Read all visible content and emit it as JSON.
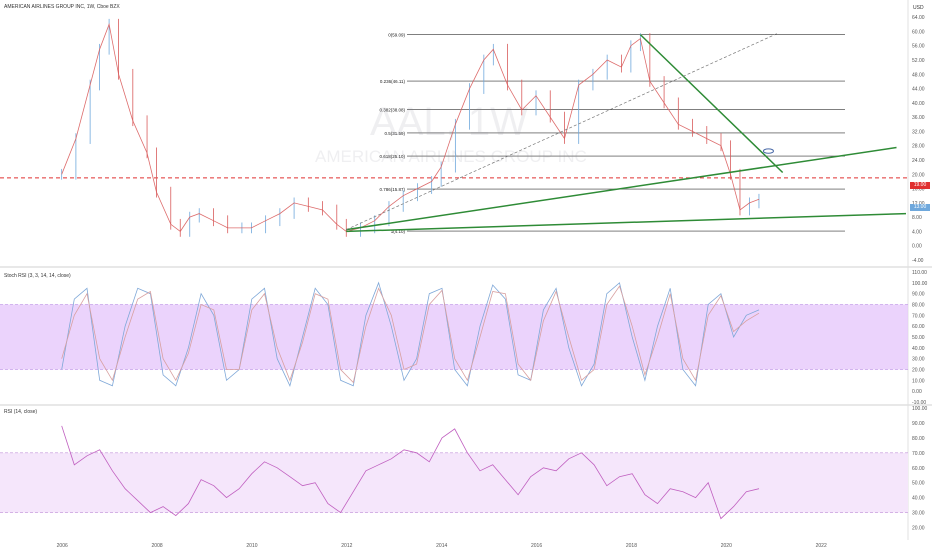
{
  "header": {
    "main_title": "AMERICAN AIRLINES GROUP INC, 1W, Cboe BZX",
    "stoch_title": "Stoch RSI (3, 3, 14, 14, close)",
    "rsi_title": "RSI (14, close)",
    "currency": "USD"
  },
  "watermark": {
    "ticker": "AAL, 1W",
    "name": "AMERICAN AIRLINES GROUP INC"
  },
  "current_labels": {
    "level": "19.00",
    "price": "13.00"
  },
  "colors": {
    "candle_up": "#6fa8dc",
    "candle_down": "#d95c5c",
    "trend": "#2e8b36",
    "fib": "#333333",
    "level_red": "#e03030",
    "band": "#e6c8fb",
    "stoch_k": "#7fa8d8",
    "stoch_d": "#d8a0a0",
    "rsi": "#c060c0"
  },
  "chart_data": [
    {
      "type": "line",
      "panel": "price",
      "title": "AMERICAN AIRLINES GROUP INC, 1W, Cboe BZX",
      "x_ticks": [
        "2006",
        "2008",
        "2010",
        "2012",
        "2014",
        "2016",
        "2018",
        "2020",
        "2022"
      ],
      "y_ticks": [
        "64.00",
        "60.00",
        "56.00",
        "52.00",
        "48.00",
        "44.00",
        "40.00",
        "36.00",
        "32.00",
        "28.00",
        "24.00",
        "20.00",
        "16.00",
        "12.00",
        "8.00",
        "4.00",
        "0.00",
        "-4.00"
      ],
      "ylim": [
        -4,
        66
      ],
      "xlim": [
        2004.7,
        2023.8
      ],
      "series": [
        {
          "x": [
            2006.0,
            2006.3,
            2006.6,
            2006.8,
            2007.0,
            2007.2,
            2007.5,
            2007.8,
            2008.0,
            2008.3,
            2008.5,
            2008.7,
            2008.9,
            2009.2,
            2009.5,
            2009.8,
            2010.0,
            2010.3,
            2010.6,
            2010.9,
            2011.2,
            2011.5,
            2011.8,
            2012.0,
            2012.3,
            2012.6,
            2012.9,
            2013.2,
            2013.5,
            2013.8,
            2014.0,
            2014.3,
            2014.6,
            2014.9,
            2015.1,
            2015.4,
            2015.7,
            2016.0,
            2016.3,
            2016.6,
            2016.9,
            2017.2,
            2017.5,
            2017.8,
            2018.0,
            2018.2,
            2018.4,
            2018.7,
            2019.0,
            2019.3,
            2019.6,
            2019.9,
            2020.1,
            2020.3,
            2020.5,
            2020.7
          ],
          "values": [
            20,
            30,
            45,
            55,
            62,
            48,
            35,
            26,
            15,
            6,
            4,
            8,
            9,
            7,
            5,
            5,
            5,
            7,
            9,
            12,
            11,
            10,
            6,
            4,
            5,
            7,
            11,
            14,
            16,
            18,
            22,
            34,
            44,
            52,
            55,
            45,
            38,
            42,
            36,
            30,
            45,
            48,
            52,
            50,
            56,
            58,
            46,
            40,
            34,
            32,
            30,
            28,
            20,
            10,
            12,
            13
          ]
        }
      ],
      "fib_levels": [
        {
          "label": "0(59.09)",
          "value": 59.09
        },
        {
          "label": "0.236(46.11)",
          "value": 46.11
        },
        {
          "label": "0.382(38.08)",
          "value": 38.08
        },
        {
          "label": "0.5(31.59)",
          "value": 31.59
        },
        {
          "label": "0.618(25.10)",
          "value": 25.1
        },
        {
          "label": "0.786(15.87)",
          "value": 15.87
        },
        {
          "label": "1(4.10)",
          "value": 4.1
        }
      ],
      "horizontal_level": 19.0
    },
    {
      "type": "line",
      "panel": "stoch",
      "title": "Stoch RSI (3, 3, 14, 14, close)",
      "y_ticks": [
        "110.00",
        "100.00",
        "90.00",
        "80.00",
        "70.00",
        "60.00",
        "50.00",
        "40.00",
        "30.00",
        "20.00",
        "10.00",
        "0.00",
        "-10.00"
      ],
      "ylim": [
        -10,
        110
      ],
      "band": [
        20,
        80
      ],
      "series": [
        {
          "name": "%K",
          "values": [
            20,
            85,
            95,
            10,
            5,
            60,
            95,
            90,
            15,
            5,
            40,
            90,
            70,
            10,
            20,
            85,
            95,
            30,
            5,
            50,
            95,
            80,
            10,
            5,
            70,
            100,
            60,
            10,
            30,
            90,
            95,
            20,
            5,
            60,
            98,
            85,
            15,
            10,
            75,
            95,
            40,
            5,
            25,
            90,
            100,
            50,
            10,
            60,
            95,
            20,
            5,
            80,
            90,
            50,
            70,
            75
          ]
        },
        {
          "name": "%D",
          "values": [
            30,
            70,
            90,
            30,
            10,
            50,
            85,
            92,
            30,
            10,
            35,
            80,
            75,
            20,
            20,
            75,
            90,
            40,
            10,
            45,
            90,
            85,
            20,
            8,
            60,
            95,
            70,
            20,
            25,
            80,
            93,
            30,
            10,
            50,
            92,
            90,
            25,
            10,
            65,
            92,
            50,
            10,
            20,
            80,
            97,
            60,
            15,
            50,
            90,
            30,
            10,
            70,
            88,
            55,
            65,
            72
          ]
        }
      ]
    },
    {
      "type": "line",
      "panel": "rsi",
      "title": "RSI (14, close)",
      "y_ticks": [
        "100.00",
        "90.00",
        "80.00",
        "70.00",
        "60.00",
        "50.00",
        "40.00",
        "30.00",
        "20.00"
      ],
      "ylim": [
        15,
        100
      ],
      "band": [
        30,
        70
      ],
      "series": [
        {
          "name": "RSI",
          "values": [
            88,
            62,
            68,
            72,
            58,
            46,
            38,
            30,
            34,
            28,
            36,
            52,
            48,
            40,
            46,
            56,
            64,
            60,
            54,
            48,
            50,
            36,
            30,
            44,
            58,
            62,
            66,
            72,
            70,
            64,
            80,
            86,
            70,
            58,
            62,
            52,
            42,
            54,
            60,
            58,
            66,
            70,
            62,
            48,
            54,
            56,
            42,
            36,
            46,
            44,
            40,
            50,
            26,
            34,
            44,
            46
          ]
        }
      ]
    }
  ]
}
